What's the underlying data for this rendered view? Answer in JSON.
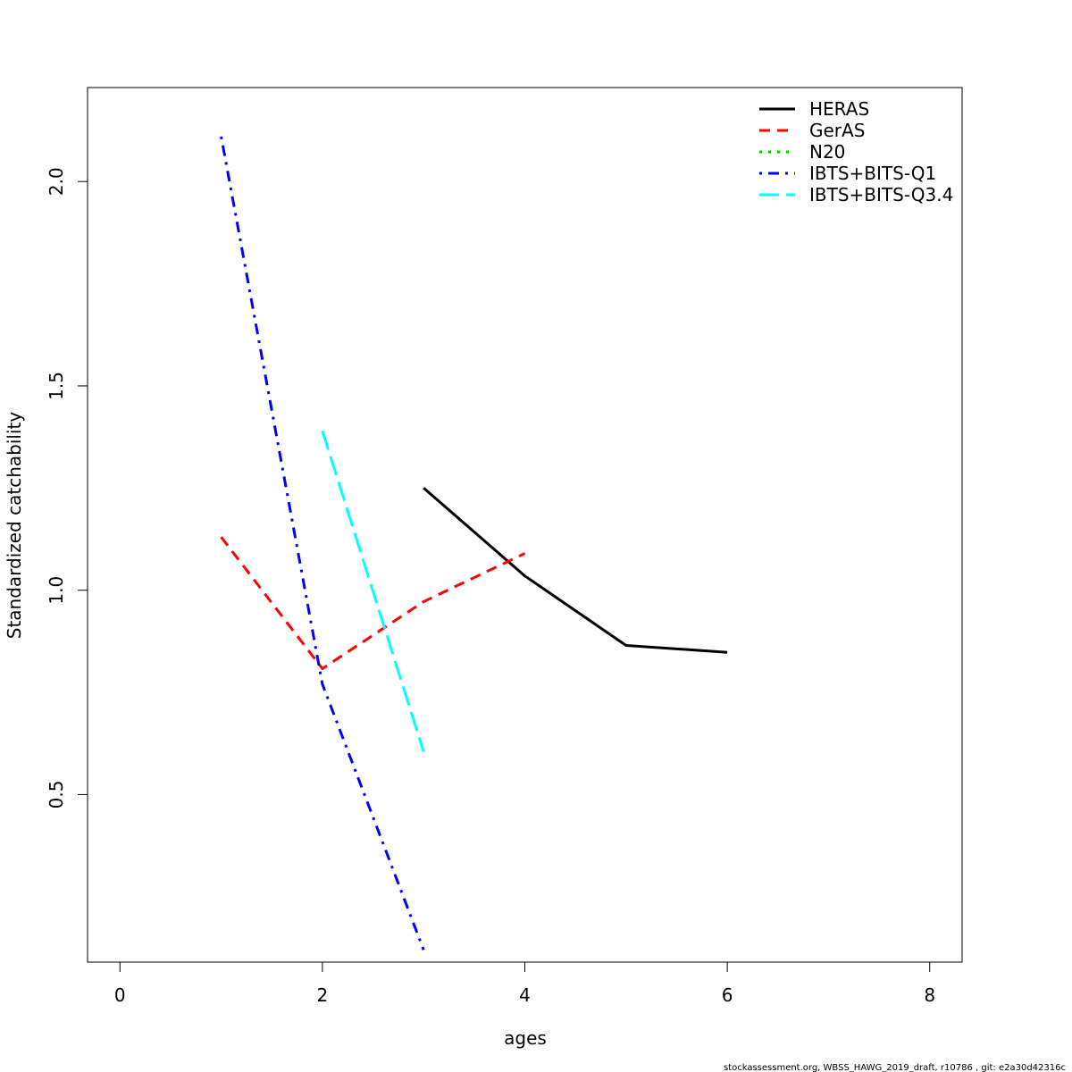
{
  "chart_data": {
    "type": "line",
    "title": "",
    "xlabel": "ages",
    "ylabel": "Standardized catchability",
    "xlim": [
      -0.32,
      8.32
    ],
    "ylim": [
      0.09,
      2.23
    ],
    "xticks": [
      0,
      2,
      4,
      6,
      8
    ],
    "yticks": [
      0.5,
      1.0,
      1.5,
      2.0
    ],
    "xtick_labels": [
      "0",
      "2",
      "4",
      "6",
      "8"
    ],
    "ytick_labels": [
      "0.5",
      "1.0",
      "1.5",
      "2.0"
    ],
    "grid": false,
    "legend_position": "top-right",
    "series": [
      {
        "name": "HERAS",
        "color": "#000000",
        "dash": "solid",
        "x": [
          3,
          4,
          5,
          6
        ],
        "y": [
          1.25,
          1.035,
          0.865,
          0.848
        ]
      },
      {
        "name": "GerAS",
        "color": "#ff0000",
        "dash": "dashed",
        "x": [
          1,
          2,
          3,
          4
        ],
        "y": [
          1.13,
          0.808,
          0.972,
          1.09
        ]
      },
      {
        "name": "N20",
        "color": "#00cd00",
        "dash": "dotted",
        "x": [],
        "y": []
      },
      {
        "name": "IBTS+BITS-Q1",
        "color": "#0000ff",
        "dash": "dotdash",
        "x": [
          1,
          2,
          3
        ],
        "y": [
          2.11,
          0.77,
          0.12
        ]
      },
      {
        "name": "IBTS+BITS-Q3.4",
        "color": "#00ffff",
        "dash": "longdash",
        "x": [
          2,
          3
        ],
        "y": [
          1.39,
          0.605
        ]
      }
    ]
  },
  "footer": "stockassessment.org, WBSS_HAWG_2019_draft, r10786 , git: e2a30d42316c"
}
